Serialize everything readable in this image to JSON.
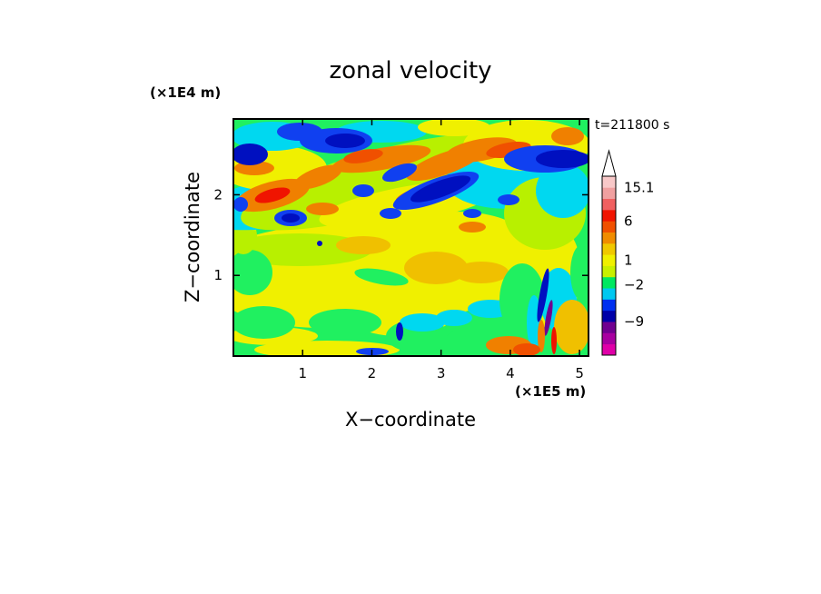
{
  "chart_data": {
    "type": "heatmap",
    "title": "zonal velocity",
    "xlabel": "X−coordinate",
    "ylabel": "Z−coordinate",
    "x_unit_label": "(×1E5 m)",
    "y_unit_label": "(×1E4 m)",
    "time_label": "t=211800 s",
    "xlim": [
      0,
      5.13
    ],
    "ylim": [
      0,
      2.94
    ],
    "x_ticks": [
      {
        "value": 1,
        "label": "1"
      },
      {
        "value": 2,
        "label": "2"
      },
      {
        "value": 3,
        "label": "3"
      },
      {
        "value": 4,
        "label": "4"
      },
      {
        "value": 5,
        "label": "5"
      }
    ],
    "y_ticks": [
      {
        "value": 1,
        "label": "1"
      },
      {
        "value": 2,
        "label": "2"
      }
    ],
    "colorbar": {
      "bands": [
        "#e000a8",
        "#a800a0",
        "#700090",
        "#0000a8",
        "#0030f0",
        "#00c8f0",
        "#00e860",
        "#c8f000",
        "#f0f000",
        "#f0c800",
        "#f08c00",
        "#f05000",
        "#f01400",
        "#f06060",
        "#f0a0a0",
        "#f8c8c8"
      ],
      "labels": [
        {
          "value": "15.1",
          "band": 15
        },
        {
          "value": "6",
          "band": 12
        },
        {
          "value": "1",
          "band": 8.5
        },
        {
          "value": "−2",
          "band": 6.3
        },
        {
          "value": "−9",
          "band": 3
        }
      ]
    },
    "field_colors": {
      "dark_blue": "#0010c0",
      "blue": "#1040f0",
      "cyan": "#00d8f0",
      "green": "#20f060",
      "yellow_green": "#b8f000",
      "yellow": "#f0f000",
      "light_orange": "#f0c000",
      "orange": "#f08000",
      "red_orange": "#f05000",
      "red": "#f01400",
      "magenta": "#c800a0",
      "purple": "#700090"
    }
  }
}
